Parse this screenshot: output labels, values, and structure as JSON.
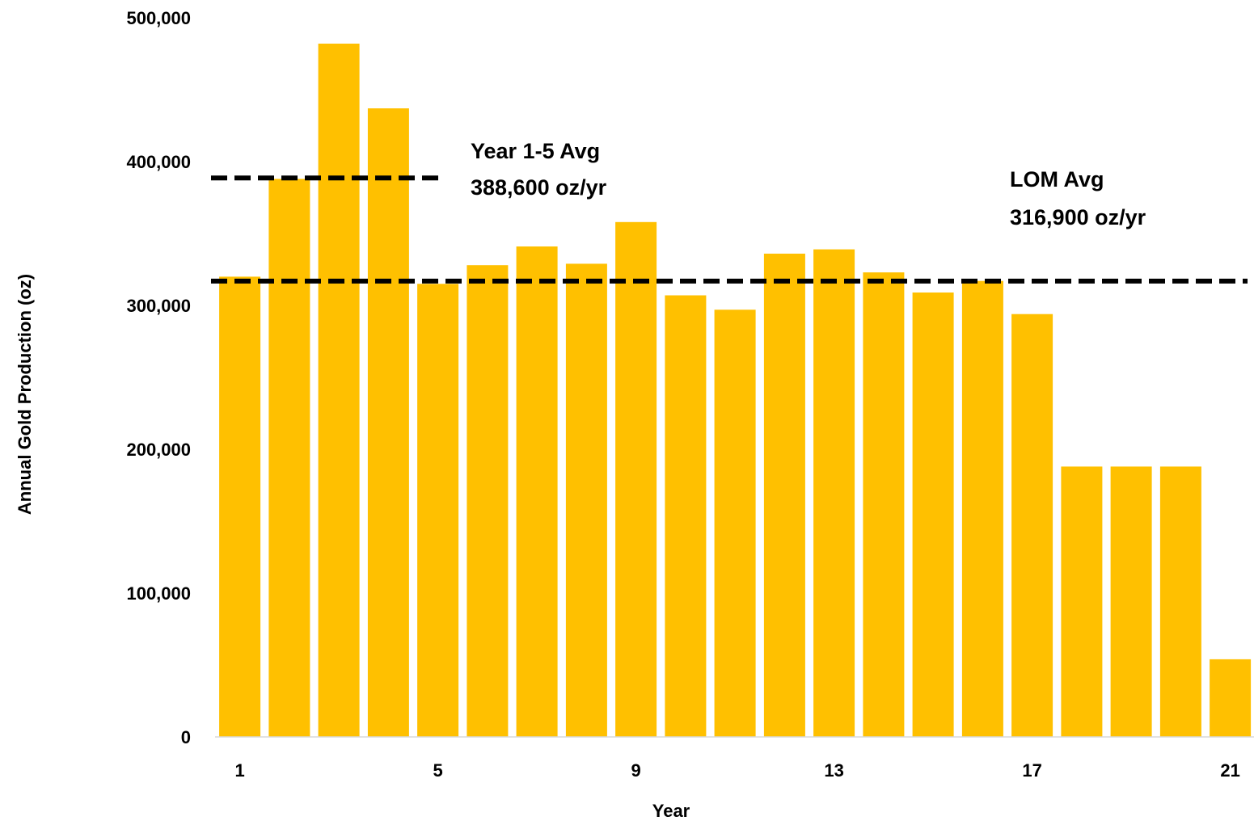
{
  "chart_data": {
    "type": "bar",
    "title": "",
    "xlabel": "Year",
    "ylabel": "Annual Gold Production (oz)",
    "ylim": [
      0,
      500000
    ],
    "yticks": [
      0,
      100000,
      200000,
      300000,
      400000,
      500000
    ],
    "ytick_labels": [
      "0",
      "100,000",
      "200,000",
      "300,000",
      "400,000",
      "500,000"
    ],
    "categories": [
      "1",
      "2",
      "3",
      "4",
      "5",
      "6",
      "7",
      "8",
      "9",
      "10",
      "11",
      "12",
      "13",
      "14",
      "15",
      "16",
      "17",
      "18",
      "19",
      "20",
      "21"
    ],
    "xtick_labels_shown": [
      "1",
      "5",
      "9",
      "13",
      "17",
      "21"
    ],
    "values": [
      320000,
      388000,
      482000,
      437000,
      315000,
      328000,
      341000,
      329000,
      358000,
      307000,
      297000,
      336000,
      339000,
      323000,
      309000,
      317000,
      294000,
      188000,
      188000,
      188000,
      54000
    ],
    "bar_color": "#FFC000",
    "grid": false,
    "legend": "none",
    "reference_lines": [
      {
        "value": 388600,
        "from_category": "1",
        "to_category": "5",
        "style": "dashed",
        "color": "#000000",
        "label_line1": "Year 1-5 Avg",
        "label_line2": "388,600 oz/yr"
      },
      {
        "value": 316900,
        "from_category": "1",
        "to_category": "21",
        "style": "dashed",
        "color": "#000000",
        "label_line1": "LOM Avg",
        "label_line2": "316,900 oz/yr"
      }
    ]
  }
}
